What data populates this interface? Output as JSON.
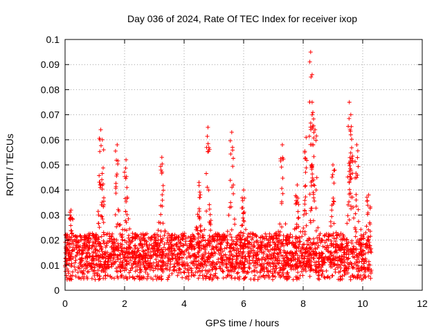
{
  "chart_data": {
    "type": "scatter",
    "title": "Day 036 of 2024, Rate Of TEC Index for receiver ixop",
    "xlabel": "GPS time / hours",
    "ylabel": "ROTI / TECUs",
    "xlim": [
      0,
      12
    ],
    "ylim": [
      0,
      0.1
    ],
    "xticks": [
      0,
      2,
      4,
      6,
      8,
      10,
      12
    ],
    "yticks": [
      0,
      0.01,
      0.02,
      0.03,
      0.04,
      0.05,
      0.06,
      0.07,
      0.08,
      0.09,
      0.1
    ],
    "xtick_labels": [
      "0",
      "2",
      "4",
      "6",
      "8",
      "10",
      "12"
    ],
    "ytick_labels": [
      "0",
      "0.01",
      "0.02",
      "0.03",
      "0.04",
      "0.05",
      "0.06",
      "0.07",
      "0.08",
      "0.09",
      "0.1"
    ],
    "grid": true,
    "marker": "+",
    "series": [
      {
        "name": "ROTI",
        "color": "#ff0000",
        "x_range_hours": [
          0,
          10.3
        ],
        "typical_band": [
          0.005,
          0.02
        ],
        "minimum": 0.003,
        "peaks": [
          {
            "x": 0.2,
            "y": 0.032
          },
          {
            "x": 1.2,
            "y": 0.064
          },
          {
            "x": 1.25,
            "y": 0.06
          },
          {
            "x": 1.75,
            "y": 0.058
          },
          {
            "x": 2.05,
            "y": 0.052
          },
          {
            "x": 3.25,
            "y": 0.053
          },
          {
            "x": 4.5,
            "y": 0.043
          },
          {
            "x": 4.8,
            "y": 0.065
          },
          {
            "x": 5.6,
            "y": 0.063
          },
          {
            "x": 6.0,
            "y": 0.04
          },
          {
            "x": 7.3,
            "y": 0.058
          },
          {
            "x": 7.8,
            "y": 0.042
          },
          {
            "x": 8.1,
            "y": 0.061
          },
          {
            "x": 8.25,
            "y": 0.095
          },
          {
            "x": 8.3,
            "y": 0.086
          },
          {
            "x": 8.3,
            "y": 0.075
          },
          {
            "x": 8.4,
            "y": 0.064
          },
          {
            "x": 9.0,
            "y": 0.05
          },
          {
            "x": 9.55,
            "y": 0.075
          },
          {
            "x": 9.6,
            "y": 0.07
          },
          {
            "x": 9.6,
            "y": 0.062
          },
          {
            "x": 9.8,
            "y": 0.058
          },
          {
            "x": 10.2,
            "y": 0.038
          }
        ]
      }
    ]
  }
}
